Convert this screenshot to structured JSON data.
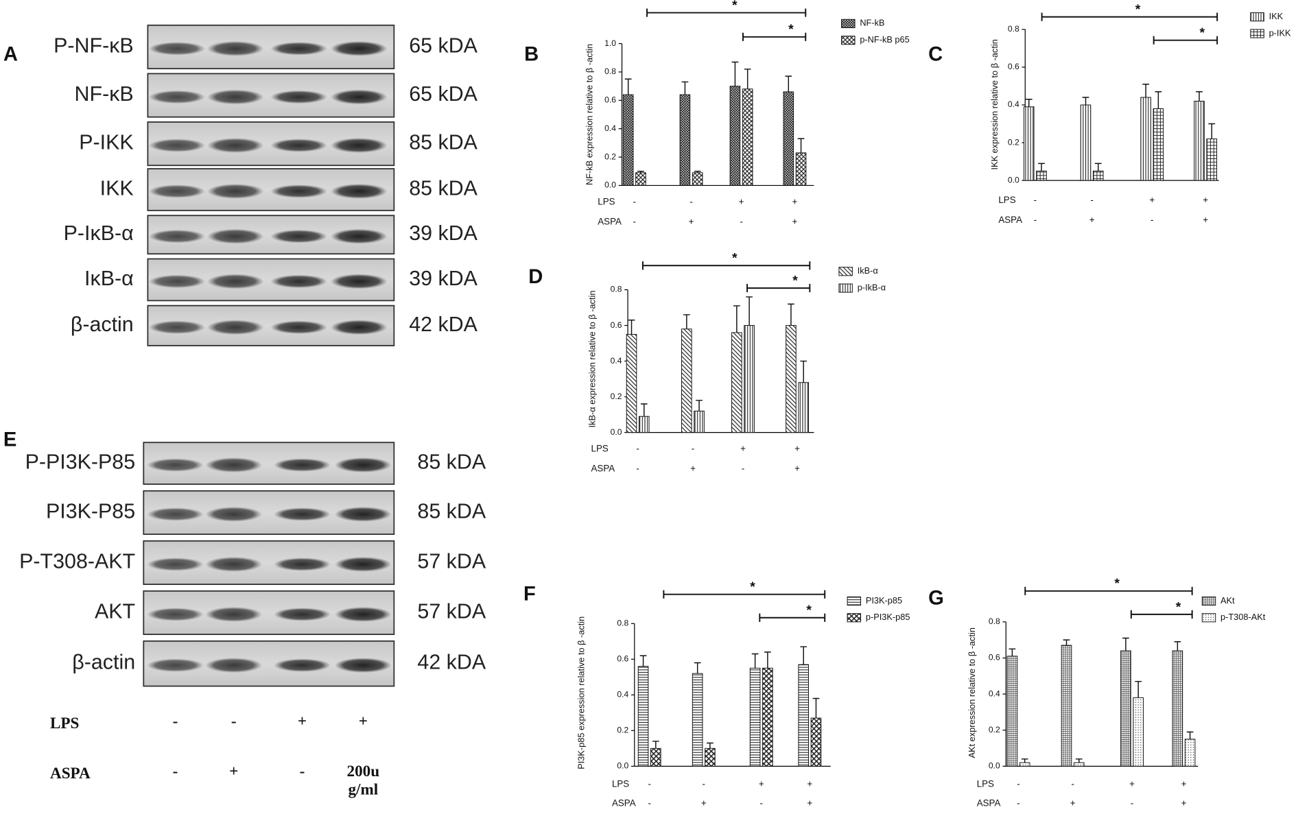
{
  "blots": [
    {
      "panel": "A",
      "rows": [
        {
          "label": "P-NF-κB",
          "size": "65 kDA"
        },
        {
          "label": "NF-κB",
          "size": "65 kDA"
        },
        {
          "label": "P-IKK",
          "size": "85 kDA"
        },
        {
          "label": "IKK",
          "size": "85 kDA"
        },
        {
          "label": "P-IκB-α",
          "size": "39 kDA"
        },
        {
          "label": "IκB-α",
          "size": "39 kDA"
        },
        {
          "label": "β-actin",
          "size": "42 kDA"
        }
      ]
    },
    {
      "panel": "E",
      "rows": [
        {
          "label": "P-PI3K-P85",
          "size": "85 kDA"
        },
        {
          "label": "PI3K-P85",
          "size": "85 kDA"
        },
        {
          "label": "P-T308-AKT",
          "size": "57 kDA"
        },
        {
          "label": "AKT",
          "size": "57 kDA"
        },
        {
          "label": "β-actin",
          "size": "42 kDA"
        }
      ],
      "conditions": [
        {
          "label": "LPS",
          "values": [
            "-",
            "-",
            "+",
            "+"
          ]
        },
        {
          "label": "ASPA",
          "values": [
            "-",
            "+",
            "-",
            "200ug/ml"
          ]
        }
      ]
    }
  ],
  "chart_data": [
    {
      "type": "bar",
      "panel": "B",
      "ylabel": "NF-kB expression relative to β -actin",
      "conditions": [
        {
          "label": "LPS",
          "values": [
            "-",
            "-",
            "+",
            "+"
          ]
        },
        {
          "label": "ASPA",
          "values": [
            "-",
            "+",
            "-",
            "+"
          ]
        }
      ],
      "series": [
        {
          "name": "NF-kB",
          "pattern": "crosshatch",
          "values": [
            0.64,
            0.64,
            0.7,
            0.66
          ],
          "errors": [
            0.11,
            0.09,
            0.17,
            0.11
          ]
        },
        {
          "name": "p-NF-kB p65",
          "pattern": "checker",
          "values": [
            0.09,
            0.09,
            0.68,
            0.23
          ],
          "errors": [
            0.01,
            0.01,
            0.14,
            0.1
          ]
        }
      ],
      "ylim": [
        0,
        1
      ],
      "yticks": [
        {
          "value": 0,
          "label": "0.0"
        },
        0.2,
        0.4,
        0.6,
        0.8,
        {
          "value": 1,
          "label": "1.0"
        }
      ],
      "annotations": [
        "*",
        "*"
      ]
    },
    {
      "type": "bar",
      "panel": "C",
      "ylabel": "IKK expression relative to β -actin",
      "conditions": [
        {
          "label": "LPS",
          "values": [
            "-",
            "-",
            "+",
            "+"
          ]
        },
        {
          "label": "ASPA",
          "values": [
            "-",
            "+",
            "-",
            "+"
          ]
        }
      ],
      "series": [
        {
          "name": "IKK",
          "pattern": "vstripe",
          "values": [
            0.39,
            0.4,
            0.44,
            0.42
          ],
          "errors": [
            0.04,
            0.04,
            0.07,
            0.05
          ]
        },
        {
          "name": "p-IKK",
          "pattern": "grid",
          "values": [
            0.05,
            0.05,
            0.38,
            0.22
          ],
          "errors": [
            0.04,
            0.04,
            0.09,
            0.08
          ]
        }
      ],
      "ylim": [
        0,
        0.8
      ],
      "yticks": [
        {
          "value": 0,
          "label": "0.0"
        },
        0.2,
        0.4,
        0.6,
        0.8
      ],
      "annotations": [
        "*",
        "*"
      ]
    },
    {
      "type": "bar",
      "panel": "D",
      "ylabel": "IkB-α  expression relative to β -actin",
      "conditions": [
        {
          "label": "LPS",
          "values": [
            "-",
            "-",
            "+",
            "+"
          ]
        },
        {
          "label": "ASPA",
          "values": [
            "-",
            "+",
            "-",
            "+"
          ]
        }
      ],
      "series": [
        {
          "name": "IkB-α",
          "pattern": "diag",
          "values": [
            0.55,
            0.58,
            0.56,
            0.6
          ],
          "errors": [
            0.08,
            0.08,
            0.15,
            0.12
          ]
        },
        {
          "name": "p-IkB-α",
          "pattern": "vstripe",
          "values": [
            0.09,
            0.12,
            0.6,
            0.28
          ],
          "errors": [
            0.07,
            0.06,
            0.16,
            0.12
          ]
        }
      ],
      "ylim": [
        0,
        0.8
      ],
      "yticks": [
        {
          "value": 0,
          "label": "0.0"
        },
        0.2,
        0.4,
        0.6,
        0.8
      ],
      "annotations": [
        "*",
        "*"
      ]
    },
    {
      "type": "bar",
      "panel": "F",
      "ylabel": "PI3K-p85 expression relative to β -actin",
      "conditions": [
        {
          "label": "LPS",
          "values": [
            "-",
            "-",
            "+",
            "+"
          ]
        },
        {
          "label": "ASPA",
          "values": [
            "-",
            "+",
            "-",
            "+"
          ]
        }
      ],
      "series": [
        {
          "name": "PI3K-p85",
          "pattern": "hstripe",
          "values": [
            0.56,
            0.52,
            0.55,
            0.57
          ],
          "errors": [
            0.06,
            0.06,
            0.08,
            0.1
          ]
        },
        {
          "name": "p-PI3K-p85",
          "pattern": "cross",
          "values": [
            0.1,
            0.1,
            0.55,
            0.27
          ],
          "errors": [
            0.04,
            0.03,
            0.09,
            0.11
          ]
        }
      ],
      "ylim": [
        0,
        0.8
      ],
      "yticks": [
        {
          "value": 0,
          "label": "0.0"
        },
        0.2,
        0.4,
        0.6,
        0.8
      ],
      "annotations": [
        "*",
        "*"
      ]
    },
    {
      "type": "bar",
      "panel": "G",
      "ylabel": "AKt expression relative to β -actin",
      "conditions": [
        {
          "label": "LPS",
          "values": [
            "-",
            "-",
            "+",
            "+"
          ]
        },
        {
          "label": "ASPA",
          "values": [
            "-",
            "+",
            "-",
            "+"
          ]
        }
      ],
      "series": [
        {
          "name": "AKt",
          "pattern": "finegrid",
          "values": [
            0.61,
            0.67,
            0.64,
            0.64
          ],
          "errors": [
            0.04,
            0.03,
            0.07,
            0.05
          ]
        },
        {
          "name": "p-T308-AKt",
          "pattern": "dots",
          "values": [
            0.02,
            0.02,
            0.38,
            0.15
          ],
          "errors": [
            0.02,
            0.02,
            0.09,
            0.04
          ]
        }
      ],
      "ylim": [
        0,
        0.8
      ],
      "yticks": [
        {
          "value": 0,
          "label": "0.0"
        },
        0.2,
        0.4,
        0.6,
        0.8
      ],
      "annotations": [
        "*",
        "*"
      ]
    }
  ]
}
